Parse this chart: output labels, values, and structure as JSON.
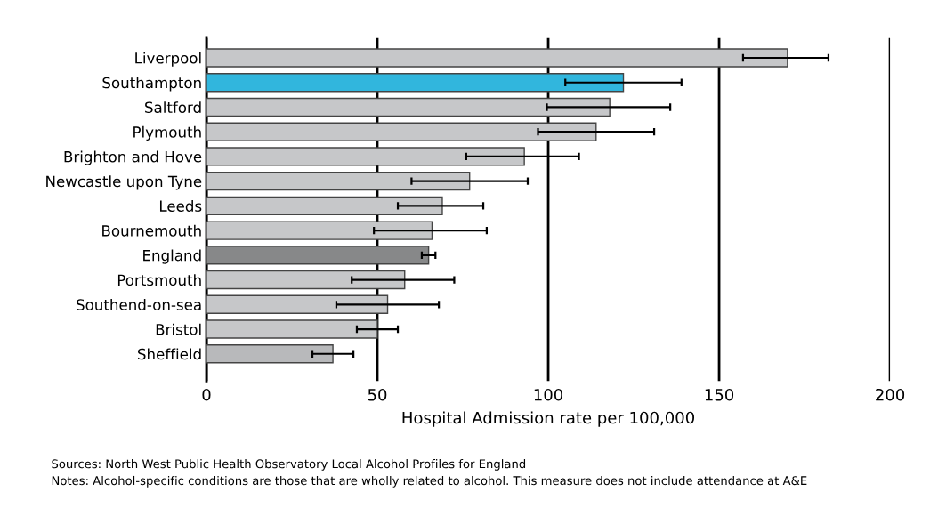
{
  "chart_data": {
    "type": "bar",
    "orientation": "horizontal",
    "xlabel": "Hospital Admission rate per 100,000",
    "categories": [
      "Liverpool",
      "Southampton",
      "Saltford",
      "Plymouth",
      "Brighton and Hove",
      "Newcastle upon Tyne",
      "Leeds",
      "Bournemouth",
      "England",
      "Portsmouth",
      "Southend-on-sea",
      "Bristol",
      "Sheffield"
    ],
    "values": [
      170,
      122,
      118,
      114,
      93,
      77,
      69,
      66,
      65,
      58,
      53,
      50,
      37
    ],
    "errors": [
      [
        157,
        182
      ],
      [
        105,
        139
      ],
      [
        99.6,
        135.7
      ],
      [
        97,
        131
      ],
      [
        76,
        109
      ],
      [
        60,
        94
      ],
      [
        56,
        81
      ],
      [
        49,
        82
      ],
      [
        63,
        67
      ],
      [
        42.5,
        72.5
      ],
      [
        38,
        68
      ],
      [
        44,
        56
      ],
      [
        31,
        43
      ]
    ],
    "colors": [
      "#c6c7c9",
      "#31b6dd",
      "#c6c7c9",
      "#c6c7c9",
      "#c6c7c9",
      "#c6c7c9",
      "#c6c7c9",
      "#c6c7c9",
      "#878889",
      "#c6c7c9",
      "#c6c7c9",
      "#c6c7c9",
      "#b8b9bb"
    ],
    "xlim": [
      0,
      200
    ],
    "xticks": [
      0,
      50,
      100,
      150,
      200
    ],
    "grid": "x",
    "annotations": [
      "Sources: North West Public Health Observatory Local Alcohol Profiles for England",
      "Notes: Alcohol-specific conditions are those that are wholly related to alcohol. This measure does not include attendance at A&E"
    ]
  }
}
